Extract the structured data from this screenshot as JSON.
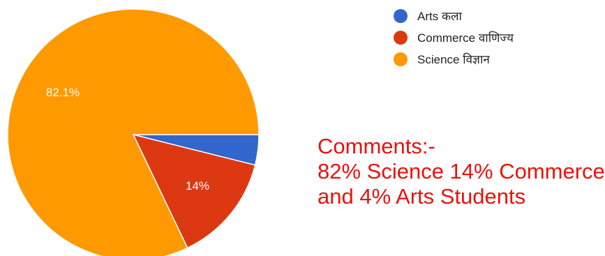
{
  "chart_data": {
    "type": "pie",
    "categories": [
      "Arts कला",
      "Commerce वाणिज्य",
      "Science विज्ञान"
    ],
    "values": [
      3.9,
      14.0,
      82.1
    ],
    "data_labels": [
      "",
      "14%",
      "82.1%"
    ],
    "colors": [
      "#3366cc",
      "#dc3912",
      "#ff9900"
    ],
    "legend_position": "top-right",
    "start_angle_deg": 0,
    "direction": "clockwise"
  },
  "legend": {
    "items": [
      {
        "label": "Arts कला",
        "color": "#3366cc"
      },
      {
        "label": "Commerce वाणिज्य",
        "color": "#dc3912"
      },
      {
        "label": "Science विज्ञान",
        "color": "#ff9900"
      }
    ]
  },
  "comments": {
    "heading": "Comments:-",
    "line1": "82% Science 14% Commerce",
    "line2": "and 4% Arts Students"
  }
}
